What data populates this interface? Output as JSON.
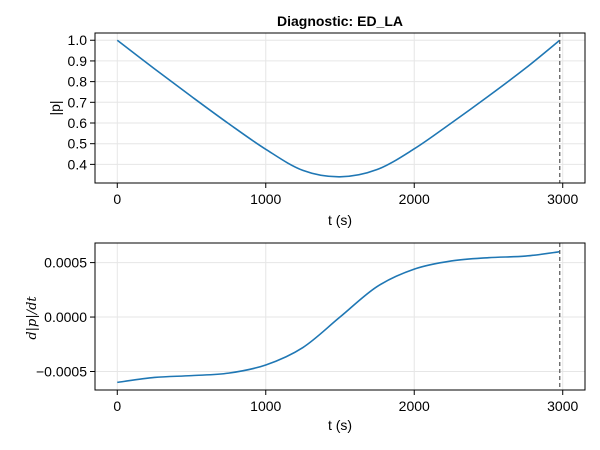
{
  "chart_data": [
    {
      "type": "line",
      "title": "Diagnostic: ED_LA",
      "xlabel": "t (s)",
      "ylabel": "|p|",
      "xlim": [
        -150,
        3150
      ],
      "ylim": [
        0.31,
        1.035
      ],
      "xticks": [
        0,
        1000,
        2000,
        3000
      ],
      "xtick_labels": [
        "0",
        "1000",
        "2000",
        "3000"
      ],
      "yticks": [
        0.4,
        0.5,
        0.6,
        0.7,
        0.8,
        0.9,
        1.0
      ],
      "ytick_labels": [
        "0.4",
        "0.5",
        "0.6",
        "0.7",
        "0.8",
        "0.9",
        "1.0"
      ],
      "grid": true,
      "vline_x": 2980,
      "color": "#1f77b4",
      "x": [
        0,
        250,
        500,
        750,
        1000,
        1250,
        1500,
        1750,
        2000,
        2250,
        2500,
        2750,
        2980
      ],
      "y": [
        1.0,
        0.862,
        0.728,
        0.597,
        0.473,
        0.371,
        0.34,
        0.375,
        0.475,
        0.6,
        0.73,
        0.865,
        1.0
      ]
    },
    {
      "type": "line",
      "title": "",
      "xlabel": "t (s)",
      "ylabel": "d|p|/dt",
      "xlim": [
        -150,
        3150
      ],
      "ylim": [
        -0.00067,
        0.00068
      ],
      "xticks": [
        0,
        1000,
        2000,
        3000
      ],
      "xtick_labels": [
        "0",
        "1000",
        "2000",
        "3000"
      ],
      "yticks": [
        -0.0005,
        0.0,
        0.0005
      ],
      "ytick_labels": [
        "−0.0005",
        "0.0000",
        "0.0005"
      ],
      "grid": true,
      "vline_x": 2980,
      "color": "#1f77b4",
      "x": [
        0,
        250,
        500,
        750,
        1000,
        1250,
        1500,
        1750,
        2000,
        2250,
        2500,
        2750,
        2980
      ],
      "y": [
        -0.0006,
        -0.000555,
        -0.000538,
        -0.000515,
        -0.00044,
        -0.00028,
        0.0,
        0.00028,
        0.00044,
        0.000515,
        0.000545,
        0.00056,
        0.0006
      ]
    }
  ]
}
